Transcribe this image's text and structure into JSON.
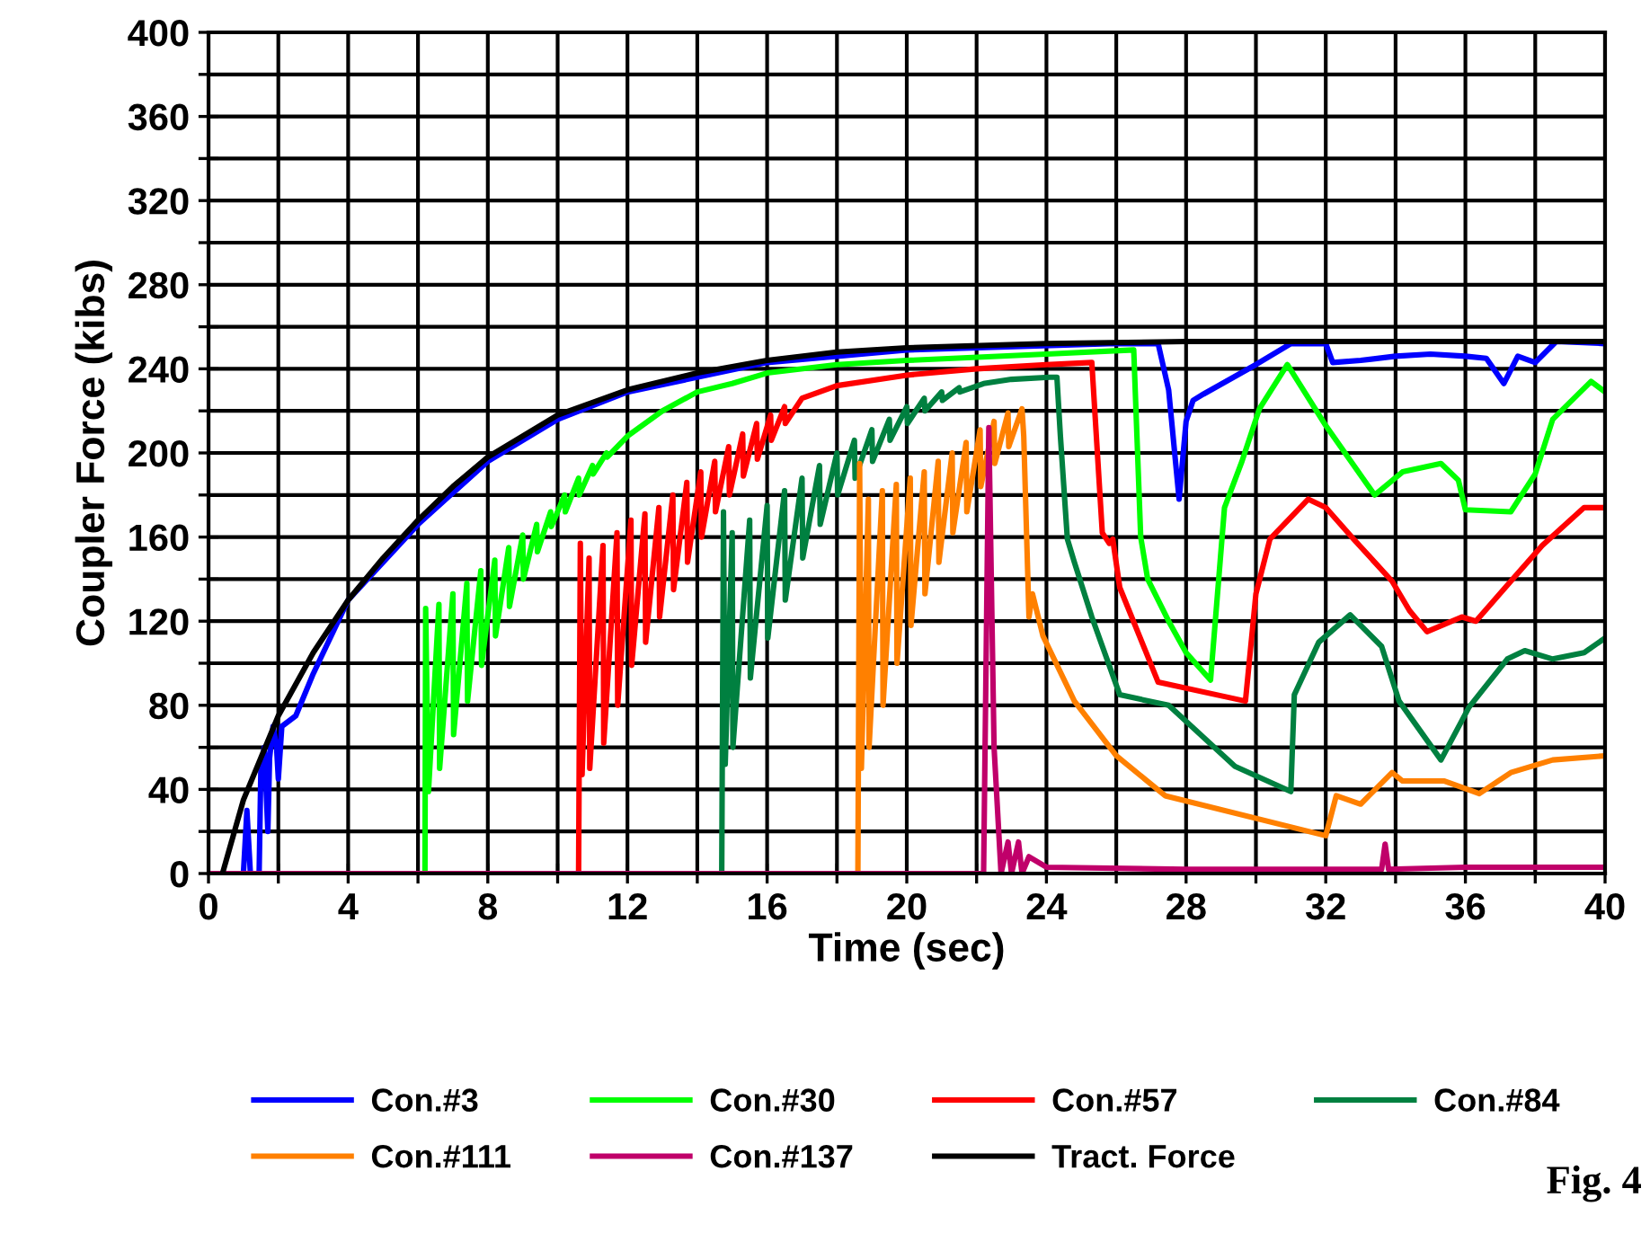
{
  "chart_data": {
    "type": "line",
    "xlabel": "Time (sec)",
    "ylabel": "Coupler Force (kibs)",
    "xlim": [
      0,
      40
    ],
    "ylim": [
      0,
      400
    ],
    "xticks": [
      0,
      {
        "value": 2,
        "label": null
      },
      4,
      {
        "value": 6,
        "label": null
      },
      8,
      {
        "value": 10,
        "label": null
      },
      12,
      {
        "value": 14,
        "label": null
      },
      16,
      {
        "value": 18,
        "label": null
      },
      20,
      {
        "value": 22,
        "label": null
      },
      24,
      {
        "value": 26,
        "label": null
      },
      28,
      {
        "value": 30,
        "label": null
      },
      32,
      {
        "value": 34,
        "label": null
      },
      36,
      {
        "value": 38,
        "label": null
      },
      40
    ],
    "yticks": [
      0,
      {
        "value": 20,
        "label": null
      },
      40,
      {
        "value": 60,
        "label": null
      },
      80,
      {
        "value": 100,
        "label": null
      },
      120,
      {
        "value": 140,
        "label": null
      },
      160,
      {
        "value": 180,
        "label": null
      },
      200,
      {
        "value": 220,
        "label": null
      },
      240,
      {
        "value": 260,
        "label": null
      },
      280,
      {
        "value": 300,
        "label": null
      },
      320,
      {
        "value": 340,
        "label": null
      },
      360,
      {
        "value": 380,
        "label": null
      },
      400
    ],
    "grid": true,
    "legend": "bottom",
    "marker": "none",
    "line_style": "solid",
    "annotations": [
      "Fig. 4"
    ],
    "series": [
      {
        "name": "Con.#3",
        "color": "#0000ff",
        "x": [
          0,
          1.0,
          1.1,
          1.2,
          1.45,
          1.5,
          1.6,
          1.7,
          1.75,
          1.85,
          1.95,
          2.0,
          2.1,
          2.5,
          3,
          4,
          6,
          8,
          10,
          12,
          16,
          20,
          26,
          27.2,
          27.5,
          27.8,
          28.0,
          28.2,
          28.5,
          30,
          31,
          32,
          32.2,
          33,
          34,
          35,
          36,
          36.6,
          37.1,
          37.5,
          38,
          38.6,
          40
        ],
        "values": [
          0,
          0,
          30,
          0,
          0,
          50,
          60,
          20,
          55,
          70,
          60,
          45,
          70,
          75,
          95,
          130,
          166,
          196,
          216,
          229,
          243,
          249,
          252,
          252,
          230,
          178,
          215,
          225,
          228,
          242,
          252,
          252,
          243,
          244,
          246,
          247,
          246,
          245,
          233,
          246,
          243,
          253,
          252
        ]
      },
      {
        "name": "Con.#30",
        "color": "#00ff00",
        "x": [
          0,
          6.2,
          6.22,
          6.3,
          6.6,
          6.62,
          7.0,
          7.02,
          7.4,
          7.42,
          7.8,
          7.82,
          8.2,
          8.22,
          8.6,
          8.62,
          9.0,
          9.02,
          9.4,
          9.42,
          9.8,
          9.82,
          10.2,
          10.22,
          10.6,
          10.62,
          11.0,
          11.02,
          11.4,
          11.42,
          12,
          13,
          14,
          15,
          16,
          18,
          20,
          24,
          26.5,
          26.7,
          26.9,
          27.5,
          28,
          28.7,
          29.1,
          29.6,
          30.1,
          30.9,
          32.0,
          33.4,
          34.2,
          35.3,
          35.8,
          36.0,
          37.3,
          38.0,
          38.5,
          39.6,
          40
        ],
        "values": [
          0,
          0,
          126,
          39,
          128,
          50,
          133,
          66,
          138,
          82,
          144,
          99,
          149,
          113,
          155,
          127,
          161,
          140,
          166,
          153,
          172,
          165,
          180,
          172,
          188,
          180,
          194,
          190,
          200,
          198,
          208,
          220,
          229,
          233,
          238,
          242,
          244,
          247,
          249,
          160,
          140,
          120,
          105,
          92,
          174,
          196,
          221,
          242,
          213,
          180,
          191,
          195,
          187,
          173,
          172,
          190,
          216,
          234,
          229
        ]
      },
      {
        "name": "Con.#57",
        "color": "#ff0000",
        "x": [
          0,
          10.6,
          10.65,
          10.7,
          10.9,
          10.92,
          11.3,
          11.32,
          11.7,
          11.72,
          12.1,
          12.12,
          12.5,
          12.52,
          12.9,
          12.92,
          13.3,
          13.32,
          13.7,
          13.72,
          14.1,
          14.12,
          14.5,
          14.52,
          14.9,
          14.92,
          15.3,
          15.32,
          15.7,
          15.72,
          16.1,
          16.12,
          16.5,
          16.52,
          17,
          18,
          20,
          22,
          24,
          25.3,
          25.6,
          25.8,
          25.9,
          26.1,
          27.2,
          29.7,
          30.0,
          30.4,
          31.5,
          32.0,
          32.8,
          33.9,
          34.4,
          34.9,
          35.9,
          36.3,
          37.3,
          38.2,
          39.4,
          40
        ],
        "values": [
          0,
          0,
          157,
          47,
          150,
          50,
          156,
          62,
          162,
          80,
          168,
          99,
          171,
          110,
          174,
          122,
          180,
          135,
          186,
          148,
          191,
          160,
          196,
          172,
          203,
          180,
          209,
          189,
          214,
          197,
          218,
          206,
          222,
          214,
          226,
          232,
          237,
          240,
          242,
          243,
          162,
          157,
          159,
          136,
          91,
          82,
          133,
          159,
          178,
          174,
          159,
          139,
          125,
          115,
          122,
          120,
          139,
          156,
          174,
          174
        ]
      },
      {
        "name": "Con.#84",
        "color": "#008040",
        "x": [
          0,
          14.7,
          14.75,
          14.8,
          15.0,
          15.02,
          15.5,
          15.52,
          16.0,
          16.02,
          16.5,
          16.52,
          17.0,
          17.02,
          17.5,
          17.52,
          18.0,
          18.02,
          18.5,
          18.52,
          19.0,
          19.02,
          19.5,
          19.52,
          20.0,
          20.02,
          20.5,
          20.52,
          21.0,
          21.02,
          21.5,
          21.52,
          22.2,
          23,
          24.1,
          24.3,
          24.4,
          24.6,
          24.8,
          25.3,
          26.1,
          27.5,
          29.4,
          31.0,
          31.1,
          31.8,
          32.7,
          33.6,
          34.1,
          35.3,
          36.1,
          37.2,
          37.7,
          38.5,
          39.4,
          40
        ],
        "values": [
          0,
          0,
          172,
          52,
          162,
          60,
          168,
          93,
          175,
          112,
          182,
          130,
          188,
          150,
          194,
          166,
          200,
          180,
          206,
          188,
          211,
          196,
          216,
          206,
          222,
          214,
          226,
          220,
          229,
          225,
          231,
          229,
          233,
          235,
          236,
          236,
          208,
          159,
          148,
          122,
          85,
          80,
          51,
          39,
          85,
          110,
          123,
          108,
          82,
          54,
          79,
          102,
          106,
          102,
          105,
          112
        ]
      },
      {
        "name": "Con.#111",
        "color": "#ff8000",
        "x": [
          0,
          18.6,
          18.65,
          18.7,
          18.9,
          18.92,
          19.3,
          19.32,
          19.7,
          19.72,
          20.1,
          20.12,
          20.5,
          20.52,
          20.9,
          20.92,
          21.3,
          21.32,
          21.7,
          21.72,
          22.1,
          22.12,
          22.5,
          22.52,
          22.9,
          22.92,
          23.3,
          23.35,
          23.5,
          23.6,
          23.9,
          24.8,
          26,
          27.4,
          32,
          32.3,
          33,
          33.9,
          34.2,
          35.4,
          36.4,
          37.3,
          38.5,
          40
        ],
        "values": [
          0,
          0,
          195,
          50,
          178,
          60,
          182,
          80,
          185,
          100,
          188,
          118,
          191,
          133,
          196,
          148,
          200,
          162,
          205,
          172,
          211,
          184,
          215,
          195,
          219,
          203,
          221,
          208,
          122,
          133,
          113,
          82,
          56,
          37,
          18,
          37,
          33,
          48,
          44,
          44,
          38,
          48,
          54,
          56
        ]
      },
      {
        "name": "Con.#137",
        "color": "#c0006a",
        "x": [
          0,
          22.2,
          22.35,
          22.5,
          22.7,
          22.9,
          23.0,
          23.2,
          23.3,
          23.5,
          24,
          28,
          30,
          33.6,
          33.7,
          33.8,
          36,
          40
        ],
        "values": [
          0,
          0,
          212,
          60,
          0,
          15,
          0,
          15,
          0,
          8,
          3,
          2,
          2,
          2,
          14,
          2,
          3,
          3
        ]
      },
      {
        "name": "Tract. Force",
        "color": "#000000",
        "x": [
          0.4,
          1,
          2,
          3,
          4,
          5,
          6,
          7,
          8,
          10,
          12,
          14,
          16,
          18,
          20,
          24,
          28,
          40
        ],
        "values": [
          0,
          35,
          75,
          105,
          130,
          150,
          168,
          184,
          198,
          218,
          230,
          238,
          244,
          248,
          250,
          252,
          253,
          253
        ]
      }
    ]
  }
}
